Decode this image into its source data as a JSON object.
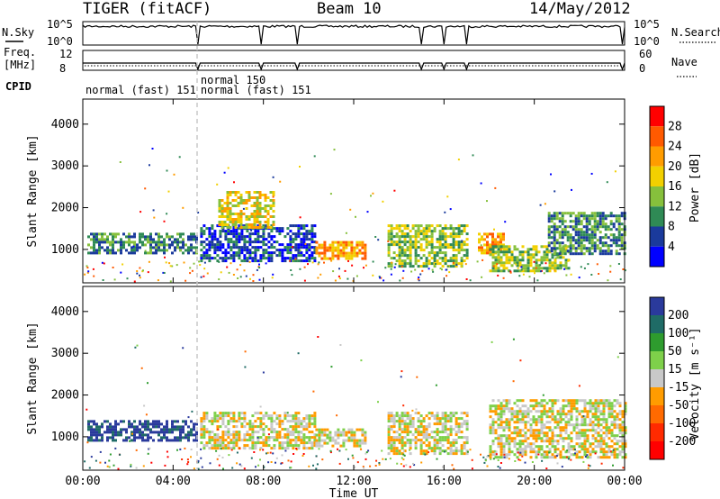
{
  "header": {
    "title": "TIGER (fitACF)",
    "beam": "Beam 10",
    "date": "14/May/2012"
  },
  "side_labels": {
    "nsky": "N.Sky",
    "freq_line1": "Freq.",
    "freq_line2": "[MHz]",
    "cpid": "CPID",
    "nsearch": "N.Search",
    "nave": "Nave"
  },
  "nsky_panel": {
    "left_ticks": [
      "10^5",
      "10^0"
    ],
    "right_ticks": [
      "10^5",
      "10^0"
    ]
  },
  "freq_panel": {
    "left_ticks": [
      "12",
      "8"
    ],
    "right_ticks": [
      "60",
      "0"
    ]
  },
  "cpid_labels": [
    {
      "text": "normal (fast) 151",
      "hour": 0.0,
      "row": 2
    },
    {
      "text": "normal 150",
      "hour": 5.1,
      "row": 1
    },
    {
      "text": "normal (fast) 151",
      "hour": 5.1,
      "row": 2
    }
  ],
  "x_axis": {
    "label": "Time UT",
    "ticks": [
      "00:00",
      "04:00",
      "08:00",
      "12:00",
      "16:00",
      "20:00",
      "00:00"
    ],
    "tick_hours": [
      0,
      4,
      8,
      12,
      16,
      20,
      24
    ]
  },
  "chart_data": [
    {
      "type": "heatmap",
      "title": "Power",
      "ylabel": "Slant Range [km]",
      "xlabel": "Time UT",
      "xlim": [
        0,
        24
      ],
      "ylim": [
        200,
        4600
      ],
      "yticks": [
        "1000",
        "2000",
        "3000",
        "4000"
      ],
      "ytick_values": [
        1000,
        2000,
        3000,
        4000
      ],
      "colorbar": {
        "label": "Power [dB]",
        "ticks": [
          "28",
          "24",
          "20",
          "16",
          "12",
          "8",
          "4"
        ],
        "colors": [
          "#ff0000",
          "#ff5a00",
          "#ff9c00",
          "#f2d000",
          "#86c03c",
          "#2f8a55",
          "#1a3a9c",
          "#0000ff"
        ]
      },
      "echo_regions": [
        {
          "t0": 0.2,
          "t1": 5.0,
          "r0": 900,
          "r1": 1400,
          "level": 5
        },
        {
          "t0": 5.2,
          "t1": 10.3,
          "r0": 700,
          "r1": 1600,
          "level": 6
        },
        {
          "t0": 6.0,
          "t1": 8.5,
          "r0": 1500,
          "r1": 2400,
          "level": 3
        },
        {
          "t0": 10.3,
          "t1": 12.5,
          "r0": 800,
          "r1": 1200,
          "level": 2
        },
        {
          "t0": 13.5,
          "t1": 17.0,
          "r0": 600,
          "r1": 1600,
          "level": 4
        },
        {
          "t0": 17.5,
          "t1": 18.6,
          "r0": 900,
          "r1": 1400,
          "level": 2
        },
        {
          "t0": 18.0,
          "t1": 21.5,
          "r0": 500,
          "r1": 1100,
          "level": 4
        },
        {
          "t0": 20.6,
          "t1": 24.0,
          "r0": 900,
          "r1": 1900,
          "level": 5
        }
      ]
    },
    {
      "type": "heatmap",
      "title": "Velocity",
      "ylabel": "Slant Range [km]",
      "xlabel": "Time UT",
      "xlim": [
        0,
        24
      ],
      "ylim": [
        200,
        4600
      ],
      "yticks": [
        "1000",
        "2000",
        "3000",
        "4000"
      ],
      "ytick_values": [
        1000,
        2000,
        3000,
        4000
      ],
      "colorbar": {
        "label": "Velocity [m s⁻¹]",
        "ticks": [
          "200",
          "100",
          "50",
          "15",
          "-15",
          "-50",
          "-100",
          "-200"
        ],
        "colors": [
          "#2a3a9c",
          "#1f6b66",
          "#2e9c2e",
          "#7ed04a",
          "#c8c8c8",
          "#ff9c00",
          "#ff6a00",
          "#ff2a00",
          "#ff0000"
        ]
      },
      "echo_regions": [
        {
          "t0": 0.2,
          "t1": 5.0,
          "r0": 900,
          "r1": 1400,
          "level": 0
        },
        {
          "t0": 5.2,
          "t1": 10.3,
          "r0": 700,
          "r1": 1600,
          "level": 4
        },
        {
          "t0": 10.3,
          "t1": 12.5,
          "r0": 800,
          "r1": 1200,
          "level": 4
        },
        {
          "t0": 13.5,
          "t1": 17.0,
          "r0": 600,
          "r1": 1600,
          "level": 4
        },
        {
          "t0": 18.0,
          "t1": 24.0,
          "r0": 500,
          "r1": 1900,
          "level": 4
        }
      ]
    }
  ]
}
